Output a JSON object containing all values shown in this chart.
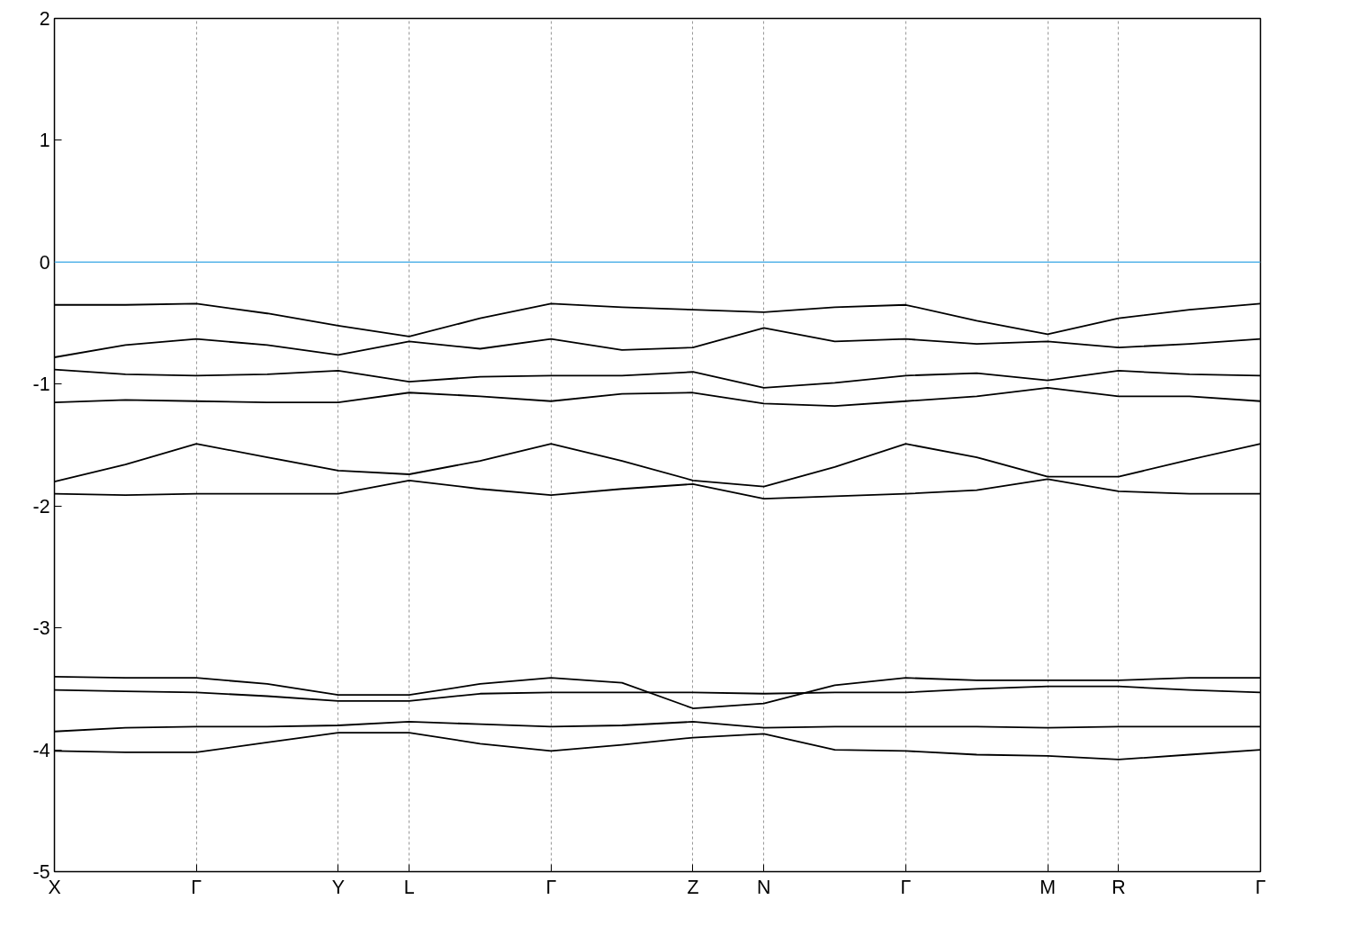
{
  "chart_data": {
    "type": "line",
    "categories": [
      "X",
      null,
      "Γ",
      null,
      "Y",
      "L",
      null,
      "Γ",
      null,
      "Z",
      "N",
      null,
      "Γ",
      null,
      "M",
      "R",
      null,
      "Γ"
    ],
    "series": [
      {
        "color": "#000000",
        "values": [
          -0.35,
          -0.35,
          -0.34,
          -0.42,
          -0.52,
          -0.61,
          -0.46,
          -0.34,
          -0.37,
          -0.39,
          -0.41,
          -0.37,
          -0.35,
          -0.48,
          -0.59,
          -0.46,
          -0.39,
          -0.34
        ]
      },
      {
        "color": "#000000",
        "values": [
          -0.78,
          -0.68,
          -0.63,
          -0.68,
          -0.76,
          -0.65,
          -0.71,
          -0.63,
          -0.72,
          -0.7,
          -0.54,
          -0.65,
          -0.63,
          -0.67,
          -0.65,
          -0.7,
          -0.67,
          -0.63
        ]
      },
      {
        "color": "#000000",
        "values": [
          -0.88,
          -0.92,
          -0.93,
          -0.92,
          -0.89,
          -0.98,
          -0.94,
          -0.93,
          -0.93,
          -0.9,
          -1.03,
          -0.99,
          -0.93,
          -0.91,
          -0.97,
          -0.89,
          -0.92,
          -0.93
        ]
      },
      {
        "color": "#000000",
        "values": [
          -1.15,
          -1.13,
          -1.14,
          -1.15,
          -1.15,
          -1.07,
          -1.1,
          -1.14,
          -1.08,
          -1.07,
          -1.16,
          -1.18,
          -1.14,
          -1.1,
          -1.03,
          -1.1,
          -1.1,
          -1.14
        ]
      },
      {
        "color": "#000000",
        "values": [
          -1.8,
          -1.66,
          -1.49,
          -1.6,
          -1.71,
          -1.74,
          -1.63,
          -1.49,
          -1.63,
          -1.79,
          -1.84,
          -1.68,
          -1.49,
          -1.6,
          -1.76,
          -1.76,
          -1.62,
          -1.49
        ]
      },
      {
        "color": "#000000",
        "values": [
          -1.9,
          -1.91,
          -1.9,
          -1.9,
          -1.9,
          -1.79,
          -1.86,
          -1.91,
          -1.86,
          -1.82,
          -1.94,
          -1.92,
          -1.9,
          -1.87,
          -1.78,
          -1.88,
          -1.9,
          -1.9
        ]
      },
      {
        "color": "#000000",
        "values": [
          -3.4,
          -3.41,
          -3.41,
          -3.46,
          -3.55,
          -3.55,
          -3.46,
          -3.41,
          -3.45,
          -3.66,
          -3.62,
          -3.47,
          -3.41,
          -3.43,
          -3.43,
          -3.43,
          -3.41,
          -3.41
        ]
      },
      {
        "color": "#000000",
        "values": [
          -3.51,
          -3.52,
          -3.53,
          -3.56,
          -3.6,
          -3.6,
          -3.54,
          -3.53,
          -3.53,
          -3.53,
          -3.54,
          -3.53,
          -3.53,
          -3.5,
          -3.48,
          -3.48,
          -3.51,
          -3.53
        ]
      },
      {
        "color": "#000000",
        "values": [
          -3.85,
          -3.82,
          -3.81,
          -3.81,
          -3.8,
          -3.77,
          -3.79,
          -3.81,
          -3.8,
          -3.77,
          -3.82,
          -3.81,
          -3.81,
          -3.81,
          -3.82,
          -3.81,
          -3.81,
          -3.81
        ]
      },
      {
        "color": "#000000",
        "values": [
          -4.01,
          -4.02,
          -4.02,
          -3.94,
          -3.86,
          -3.86,
          -3.95,
          -4.01,
          -3.96,
          -3.9,
          -3.87,
          -4.0,
          -4.01,
          -4.04,
          -4.05,
          -4.08,
          -4.04,
          -4.0
        ]
      }
    ],
    "ylim": [
      -5,
      2
    ],
    "yticks": [
      -5,
      -4,
      -3,
      -2,
      -1,
      0,
      1,
      2
    ],
    "ref_lines": [
      {
        "axis": "y",
        "value": 0,
        "color": "#56b4e9"
      }
    ],
    "grid": "x",
    "marker": "none",
    "line_style": "solid"
  }
}
